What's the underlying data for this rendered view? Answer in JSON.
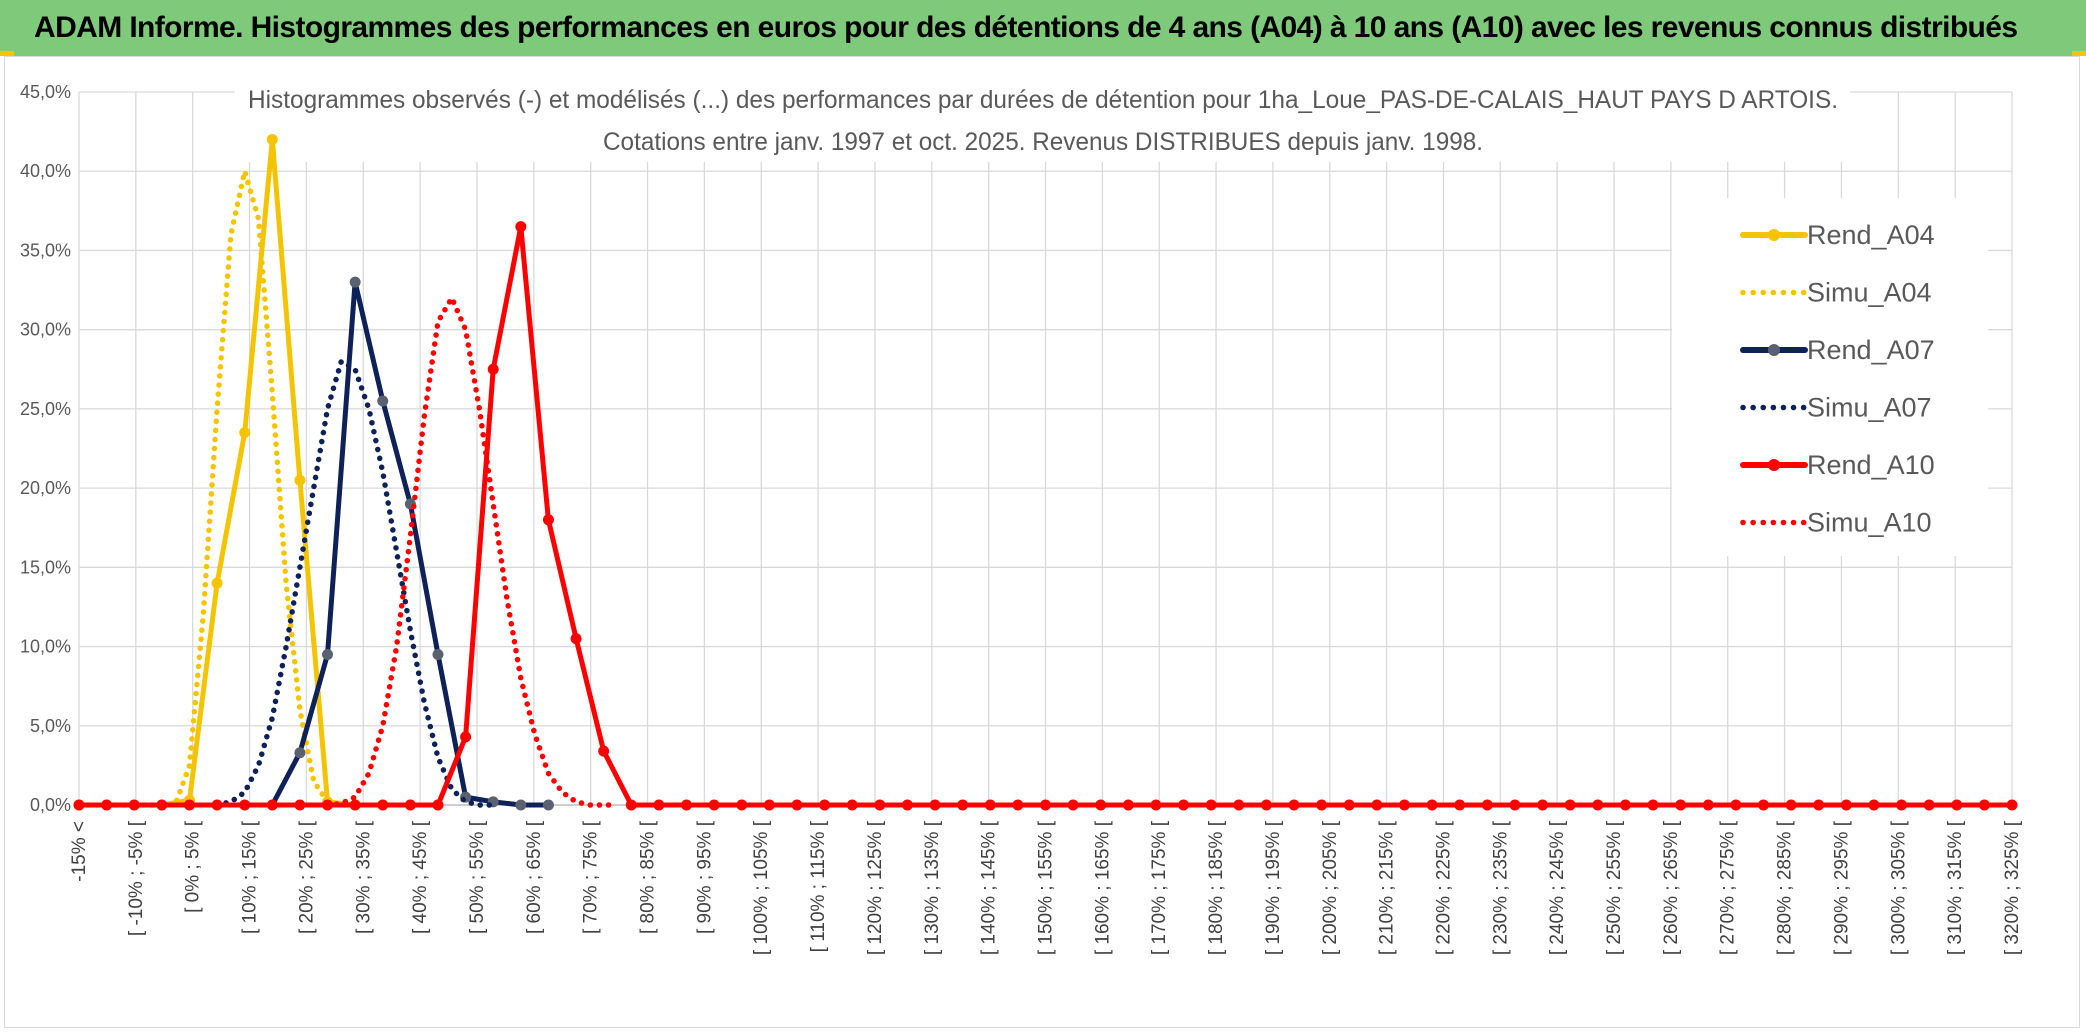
{
  "report_title": "ADAM Informe. Histogrammes des performances en euros pour des détentions de 4 ans (A04) à 10 ans (A10) avec les revenus connus distribués",
  "chart_data": {
    "type": "line",
    "title_line1": "Histogrammes observés (-) et modélisés (...) des performances par durées de détention pour 1ha_Loue_PAS-DE-CALAIS_HAUT PAYS D ARTOIS.",
    "title_line2": "Cotations entre janv. 1997 et oct. 2025. Revenus DISTRIBUES depuis janv. 1998.",
    "y_ticks": [
      "0,0%",
      "5,0%",
      "10,0%",
      "15,0%",
      "20,0%",
      "25,0%",
      "30,0%",
      "35,0%",
      "40,0%",
      "45,0%"
    ],
    "ylim": [
      0,
      45
    ],
    "grid": true,
    "legend_position": "right",
    "categories": [
      "-15% <",
      "[ -10% ; -5% [",
      "[ 0% ; 5% [",
      "[ 10% ; 15% [",
      "[ 20% ; 25% [",
      "[ 30% ; 35% [",
      "[ 40% ; 45% [",
      "[ 50% ; 55% [",
      "[ 60% ; 65% [",
      "[ 70% ; 75% [",
      "[ 80% ; 85% [",
      "[ 90% ; 95% [",
      "[ 100% ; 105% [",
      "[ 110% ; 115% [",
      "[ 120% ; 125% [",
      "[ 130% ; 135% [",
      "[ 140% ; 145% [",
      "[ 150% ; 155% [",
      "[ 160% ; 165% [",
      "[ 170% ; 175% [",
      "[ 180% ; 185% [",
      "[ 190% ; 195% [",
      "[ 200% ; 205% [",
      "[ 210% ; 215% [",
      "[ 220% ; 225% [",
      "[ 230% ; 235% [",
      "[ 240% ; 245% [",
      "[ 250% ; 255% [",
      "[ 260% ; 265% [",
      "[ 270% ; 275% [",
      "[ 280% ; 285% [",
      "[ 290% ; 295% [",
      "[ 300% ; 305% [",
      "[ 310% ; 315% [",
      "[ 320% ; 325% ["
    ],
    "series": [
      {
        "name": "Rend_A04",
        "color": "#f5c400",
        "style": "solid",
        "x": [
          -15,
          -10,
          -5,
          0,
          5,
          10,
          15,
          20,
          25,
          30,
          35,
          40,
          45,
          50
        ],
        "values": [
          0,
          0,
          0,
          0,
          0.3,
          14,
          23.5,
          42,
          20.5,
          0.2,
          0,
          0,
          0,
          0
        ]
      },
      {
        "name": "Simu_A04",
        "color": "#f5c400",
        "style": "dotted",
        "x": [
          -15,
          -10,
          -5,
          0,
          2.5,
          5,
          7.5,
          10,
          12.5,
          15,
          17.5,
          20,
          22.5,
          25,
          27.5,
          30,
          32.5,
          35
        ],
        "values": [
          0,
          0,
          0,
          0,
          0.1,
          2.5,
          12,
          25,
          36,
          40,
          37,
          26,
          14,
          6,
          1.5,
          0.2,
          0,
          0
        ]
      },
      {
        "name": "Rend_A07",
        "color": "#0e2159",
        "style": "solid",
        "marker": "#5a6170",
        "x": [
          15,
          20,
          25,
          30,
          35,
          40,
          45,
          50,
          55,
          60,
          65,
          70
        ],
        "values": [
          0,
          0,
          3.3,
          9.5,
          33,
          25.5,
          19,
          9.5,
          0.5,
          0.2,
          0,
          0
        ],
        "markers_x": [
          25,
          30,
          35,
          40,
          45,
          50,
          55,
          60,
          65,
          70
        ]
      },
      {
        "name": "Simu_A07",
        "color": "#0e2159",
        "style": "dotted",
        "x": [
          10,
          12.5,
          15,
          17.5,
          20,
          22.5,
          25,
          27.5,
          30,
          32.5,
          35,
          37.5,
          40,
          42.5,
          45,
          47.5,
          50,
          52.5,
          55,
          57.5,
          60
        ],
        "values": [
          0,
          0.2,
          0.8,
          2.5,
          5.5,
          10,
          15,
          20,
          25,
          28,
          27.5,
          25,
          21,
          16,
          11,
          6.5,
          3,
          1,
          0.2,
          0,
          0
        ]
      },
      {
        "name": "Rend_A10",
        "color": "#ff0000",
        "style": "solid",
        "x": [
          -15,
          -10,
          -5,
          0,
          5,
          10,
          15,
          20,
          25,
          30,
          35,
          40,
          45,
          50,
          55,
          60,
          65,
          70,
          75,
          80,
          85,
          90,
          95,
          100,
          105,
          110,
          115,
          120,
          125,
          130,
          135,
          140,
          145,
          150,
          155,
          160,
          165,
          170,
          175,
          180,
          185,
          190,
          195,
          200,
          205,
          210,
          215,
          220,
          225,
          230,
          235,
          240,
          245,
          250,
          255,
          260,
          265,
          270,
          275,
          280,
          285,
          290,
          295,
          300,
          305,
          310,
          315,
          320,
          325,
          330,
          335
        ],
        "values": [
          0,
          0,
          0,
          0,
          0,
          0,
          0,
          0,
          0,
          0,
          0,
          0,
          0,
          0,
          4.3,
          27.5,
          36.5,
          18,
          10.5,
          3.4,
          0,
          0,
          0,
          0,
          0,
          0,
          0,
          0,
          0,
          0,
          0,
          0,
          0,
          0,
          0,
          0,
          0,
          0,
          0,
          0,
          0,
          0,
          0,
          0,
          0,
          0,
          0,
          0,
          0,
          0,
          0,
          0,
          0,
          0,
          0,
          0,
          0,
          0,
          0,
          0,
          0,
          0,
          0,
          0,
          0,
          0,
          0,
          0,
          0,
          0,
          0
        ]
      },
      {
        "name": "Simu_A10",
        "color": "#ff0000",
        "style": "dotted",
        "x": [
          30,
          32.5,
          35,
          37.5,
          40,
          42.5,
          45,
          47.5,
          50,
          52.5,
          55,
          57.5,
          60,
          62.5,
          65,
          67.5,
          70,
          72.5,
          75,
          77.5,
          80,
          82.5
        ],
        "values": [
          0,
          0.1,
          0.5,
          2,
          5,
          10,
          17,
          24.5,
          30.5,
          32,
          30,
          25,
          19,
          13,
          8,
          4.5,
          2,
          0.8,
          0.2,
          0,
          0,
          0
        ]
      }
    ]
  }
}
